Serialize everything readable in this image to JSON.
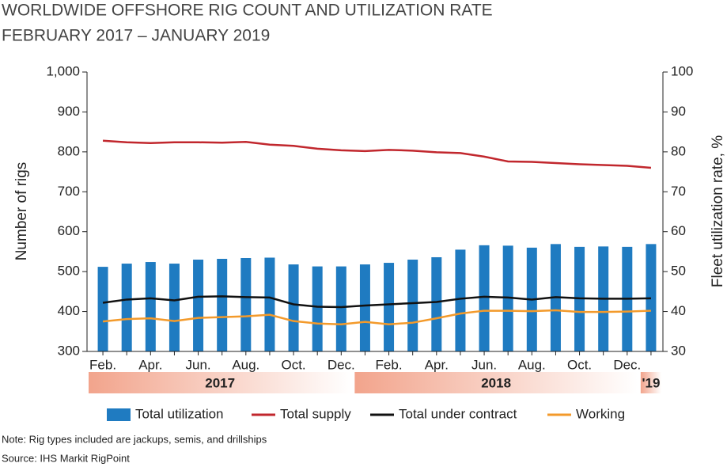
{
  "chart_data": {
    "type": "combo",
    "title": "WORLDWIDE OFFSHORE RIG COUNT AND UTILIZATION RATE",
    "subtitle": "FEBRUARY 2017 – JANUARY 2019",
    "y_label": "Number of rigs",
    "y2_label": "Fleet utilization rate, %",
    "categories": [
      "Feb.",
      null,
      "Apr.",
      null,
      "Jun.",
      null,
      "Aug.",
      null,
      "Oct.",
      null,
      "Dec.",
      null,
      "Feb.",
      null,
      "Apr.",
      null,
      "Jun.",
      null,
      "Aug.",
      null,
      "Oct.",
      null,
      "Dec.",
      null
    ],
    "groups": [
      {
        "label": "2017",
        "size": 11
      },
      {
        "label": "2018",
        "size": 12
      },
      {
        "label": "'19",
        "size": 1
      }
    ],
    "series": [
      {
        "name": "Total utilization",
        "type": "bar",
        "axis": "y2",
        "color": "#1f7bc1",
        "values": [
          51.2,
          52,
          52.4,
          52,
          53,
          53.2,
          53.4,
          53.5,
          51.8,
          51.3,
          51.3,
          51.8,
          52.2,
          53,
          53.6,
          55.5,
          56.6,
          56.5,
          56,
          56.9,
          56.2,
          56.3,
          56.2,
          56.9
        ]
      },
      {
        "name": "Total supply",
        "type": "line",
        "color": "#c1272d",
        "values": [
          828,
          824,
          822,
          824,
          824,
          823,
          825,
          818,
          815,
          808,
          804,
          802,
          805,
          803,
          799,
          797,
          788,
          776,
          775,
          772,
          769,
          767,
          765,
          760
        ]
      },
      {
        "name": "Total under contract",
        "type": "line",
        "color": "#111111",
        "values": [
          422,
          430,
          433,
          428,
          437,
          438,
          436,
          435,
          418,
          412,
          411,
          415,
          418,
          421,
          424,
          432,
          437,
          435,
          430,
          436,
          433,
          432,
          432,
          433
        ]
      },
      {
        "name": "Working",
        "type": "line",
        "color": "#f39a2b",
        "values": [
          375,
          381,
          383,
          376,
          384,
          386,
          388,
          392,
          376,
          370,
          368,
          374,
          368,
          372,
          383,
          395,
          402,
          402,
          401,
          403,
          399,
          399,
          400,
          402
        ]
      }
    ],
    "ylim": [
      300,
      1000
    ],
    "yticks": [
      300,
      400,
      500,
      600,
      700,
      800,
      900,
      {
        "value": 1000,
        "label": "1,000"
      }
    ],
    "y2lim": [
      30,
      100
    ],
    "y2ticks": [
      30,
      40,
      50,
      60,
      70,
      80,
      90,
      100
    ],
    "grid": false,
    "note": "Note: Rig types included are jackups, semis, and drillships",
    "source": "Source: IHS Markit RigPoint"
  }
}
